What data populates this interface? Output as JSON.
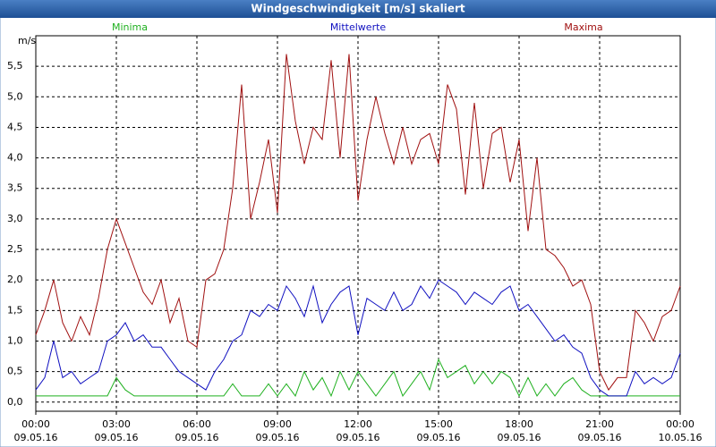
{
  "chart_data": {
    "type": "line",
    "title": "Windgeschwindigkeit [m/s] skaliert",
    "y_label": "m/s",
    "x": [
      "09.05.16 00:00",
      "09.05.16 00:20",
      "09.05.16 00:40",
      "09.05.16 01:00",
      "09.05.16 01:20",
      "09.05.16 01:40",
      "09.05.16 02:00",
      "09.05.16 02:20",
      "09.05.16 02:40",
      "09.05.16 03:00",
      "09.05.16 03:20",
      "09.05.16 03:40",
      "09.05.16 04:00",
      "09.05.16 04:20",
      "09.05.16 04:40",
      "09.05.16 05:00",
      "09.05.16 05:20",
      "09.05.16 05:40",
      "09.05.16 06:00",
      "09.05.16 06:20",
      "09.05.16 06:40",
      "09.05.16 07:00",
      "09.05.16 07:20",
      "09.05.16 07:40",
      "09.05.16 08:00",
      "09.05.16 08:20",
      "09.05.16 08:40",
      "09.05.16 09:00",
      "09.05.16 09:20",
      "09.05.16 09:40",
      "09.05.16 10:00",
      "09.05.16 10:20",
      "09.05.16 10:40",
      "09.05.16 11:00",
      "09.05.16 11:20",
      "09.05.16 11:40",
      "09.05.16 12:00",
      "09.05.16 12:20",
      "09.05.16 12:40",
      "09.05.16 13:00",
      "09.05.16 13:20",
      "09.05.16 13:40",
      "09.05.16 14:00",
      "09.05.16 14:20",
      "09.05.16 14:40",
      "09.05.16 15:00",
      "09.05.16 15:20",
      "09.05.16 15:40",
      "09.05.16 16:00",
      "09.05.16 16:20",
      "09.05.16 16:40",
      "09.05.16 17:00",
      "09.05.16 17:20",
      "09.05.16 17:40",
      "09.05.16 18:00",
      "09.05.16 18:20",
      "09.05.16 18:40",
      "09.05.16 19:00",
      "09.05.16 19:20",
      "09.05.16 19:40",
      "09.05.16 20:00",
      "09.05.16 20:20",
      "09.05.16 20:40",
      "09.05.16 21:00",
      "09.05.16 21:20",
      "09.05.16 21:40",
      "09.05.16 22:00",
      "09.05.16 22:20",
      "09.05.16 22:40",
      "09.05.16 23:00",
      "09.05.16 23:20",
      "09.05.16 23:40",
      "10.05.16 00:00"
    ],
    "series": [
      {
        "name": "Minima",
        "color": "#1fb01f",
        "values": [
          0.1,
          0.1,
          0.1,
          0.1,
          0.1,
          0.1,
          0.1,
          0.1,
          0.1,
          0.4,
          0.2,
          0.1,
          0.1,
          0.1,
          0.1,
          0.1,
          0.1,
          0.1,
          0.1,
          0.1,
          0.1,
          0.1,
          0.3,
          0.1,
          0.1,
          0.1,
          0.3,
          0.1,
          0.3,
          0.1,
          0.5,
          0.2,
          0.4,
          0.1,
          0.5,
          0.2,
          0.5,
          0.3,
          0.1,
          0.3,
          0.5,
          0.1,
          0.3,
          0.5,
          0.2,
          0.7,
          0.4,
          0.5,
          0.6,
          0.3,
          0.5,
          0.3,
          0.5,
          0.4,
          0.1,
          0.4,
          0.1,
          0.3,
          0.1,
          0.3,
          0.4,
          0.2,
          0.1,
          0.1,
          0.1,
          0.1,
          0.1,
          0.1,
          0.1,
          0.1,
          0.1,
          0.1,
          0.1
        ]
      },
      {
        "name": "Mittelwerte",
        "color": "#1010c0",
        "values": [
          0.2,
          0.4,
          1.0,
          0.4,
          0.5,
          0.3,
          0.4,
          0.5,
          1.0,
          1.1,
          1.3,
          1.0,
          1.1,
          0.9,
          0.9,
          0.7,
          0.5,
          0.4,
          0.3,
          0.2,
          0.5,
          0.7,
          1.0,
          1.1,
          1.5,
          1.4,
          1.6,
          1.5,
          1.9,
          1.7,
          1.4,
          1.9,
          1.3,
          1.6,
          1.8,
          1.9,
          1.1,
          1.7,
          1.6,
          1.5,
          1.8,
          1.5,
          1.6,
          1.9,
          1.7,
          2.0,
          1.9,
          1.8,
          1.6,
          1.8,
          1.7,
          1.6,
          1.8,
          1.9,
          1.5,
          1.6,
          1.4,
          1.2,
          1.0,
          1.1,
          0.9,
          0.8,
          0.4,
          0.2,
          0.1,
          0.1,
          0.1,
          0.5,
          0.3,
          0.4,
          0.3,
          0.4,
          0.8
        ]
      },
      {
        "name": "Maxima",
        "color": "#a01010",
        "values": [
          1.1,
          1.5,
          2.0,
          1.3,
          1.0,
          1.4,
          1.1,
          1.7,
          2.5,
          3.0,
          2.6,
          2.2,
          1.8,
          1.6,
          2.0,
          1.3,
          1.7,
          1.0,
          0.9,
          2.0,
          2.1,
          2.5,
          3.5,
          5.2,
          3.0,
          3.6,
          4.3,
          3.1,
          5.7,
          4.6,
          3.9,
          4.5,
          4.3,
          5.6,
          4.0,
          5.7,
          3.3,
          4.3,
          5.0,
          4.4,
          3.9,
          4.5,
          3.9,
          4.3,
          4.4,
          3.9,
          5.2,
          4.8,
          3.4,
          4.9,
          3.5,
          4.4,
          4.5,
          3.6,
          4.3,
          2.8,
          4.0,
          2.5,
          2.4,
          2.2,
          1.9,
          2.0,
          1.6,
          0.5,
          0.2,
          0.4,
          0.4,
          1.5,
          1.3,
          1.0,
          1.4,
          1.5,
          1.9
        ]
      }
    ],
    "xlim": [
      "09.05.16 00:00",
      "10.05.16 00:00"
    ],
    "xticks": [
      {
        "value": "09.05.16 00:00",
        "label": [
          "00:00",
          "09.05.16"
        ]
      },
      {
        "value": "09.05.16 03:00",
        "label": [
          "03:00",
          "09.05.16"
        ]
      },
      {
        "value": "09.05.16 06:00",
        "label": [
          "06:00",
          "09.05.16"
        ]
      },
      {
        "value": "09.05.16 09:00",
        "label": [
          "09:00",
          "09.05.16"
        ]
      },
      {
        "value": "09.05.16 12:00",
        "label": [
          "12:00",
          "09.05.16"
        ]
      },
      {
        "value": "09.05.16 15:00",
        "label": [
          "15:00",
          "09.05.16"
        ]
      },
      {
        "value": "09.05.16 18:00",
        "label": [
          "18:00",
          "09.05.16"
        ]
      },
      {
        "value": "09.05.16 21:00",
        "label": [
          "21:00",
          "09.05.16"
        ]
      },
      {
        "value": "10.05.16 00:00",
        "label": [
          "00:00",
          "10.05.16"
        ]
      }
    ],
    "ylim": [
      -0.15,
      6.0
    ],
    "yticks": [
      {
        "value": 0,
        "label": "0,0"
      },
      {
        "value": 0.5,
        "label": "0,5"
      },
      {
        "value": 1,
        "label": "1,0"
      },
      {
        "value": 1.5,
        "label": "1,5"
      },
      {
        "value": 2,
        "label": "2,0"
      },
      {
        "value": 2.5,
        "label": "2,5"
      },
      {
        "value": 3,
        "label": "3,0"
      },
      {
        "value": 3.5,
        "label": "3,5"
      },
      {
        "value": 4,
        "label": "4,0"
      },
      {
        "value": 4.5,
        "label": "4,5"
      },
      {
        "value": 5,
        "label": "5,0"
      },
      {
        "value": 5.5,
        "label": "5,5"
      }
    ],
    "grid": true
  }
}
